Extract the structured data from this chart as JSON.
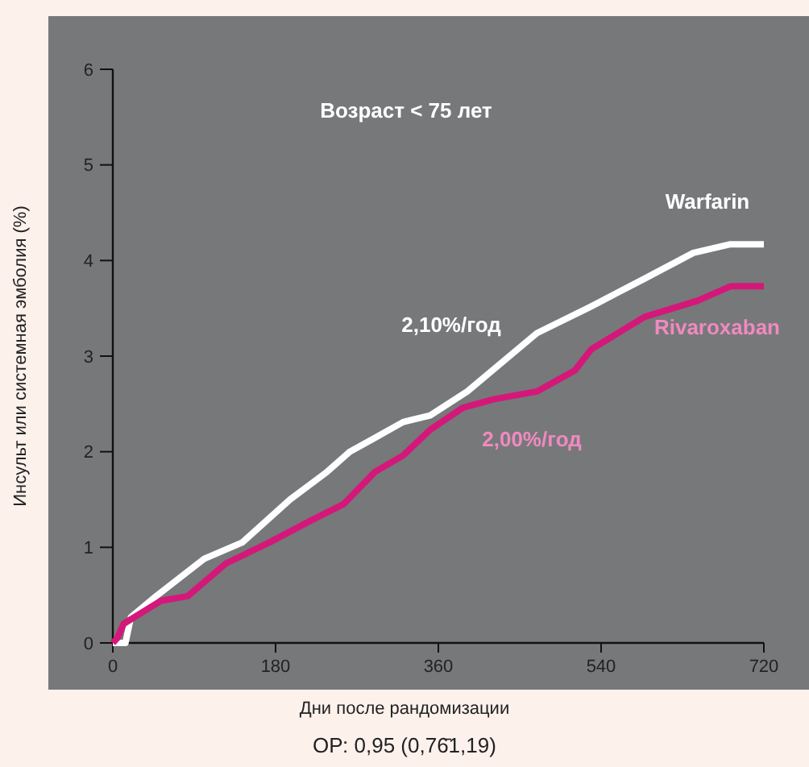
{
  "chart_data": {
    "type": "line",
    "title": "Возраст < 75 лет",
    "xlabel": "Дни после рандомизации",
    "ylabel": "Инсульт или системная эмболия (%)",
    "xlim": [
      0,
      720
    ],
    "xticks": [
      0,
      180,
      360,
      540,
      720
    ],
    "ylim": [
      0,
      6
    ],
    "yticks": [
      0,
      1,
      2,
      3,
      4,
      5,
      6
    ],
    "grid": false,
    "series": [
      {
        "name": "Warfarin",
        "color": "#ffffff",
        "x": [
          0,
          14,
          20,
          48,
          101,
          143,
          196,
          237,
          262,
          285,
          321,
          351,
          392,
          469,
          529,
          588,
          642,
          683,
          720
        ],
        "values": [
          0,
          0,
          0.27,
          0.49,
          0.88,
          1.05,
          1.5,
          1.79,
          2.0,
          2.12,
          2.31,
          2.38,
          2.63,
          3.24,
          3.52,
          3.81,
          4.08,
          4.17,
          4.17
        ]
      },
      {
        "name": "Rivaroxaban",
        "color": "#d4187a",
        "x": [
          0,
          5,
          12,
          53,
          83,
          125,
          173,
          219,
          255,
          290,
          321,
          351,
          387,
          422,
          469,
          511,
          529,
          588,
          647,
          683,
          720
        ],
        "values": [
          0,
          0.05,
          0.2,
          0.44,
          0.49,
          0.83,
          1.05,
          1.28,
          1.45,
          1.79,
          1.96,
          2.23,
          2.46,
          2.55,
          2.63,
          2.85,
          3.07,
          3.41,
          3.58,
          3.73,
          3.73
        ]
      }
    ],
    "annotations": [
      "2,10%/год",
      "2,00%/год",
      "ОР: 0,95 (0,76̄1,19)"
    ]
  }
}
